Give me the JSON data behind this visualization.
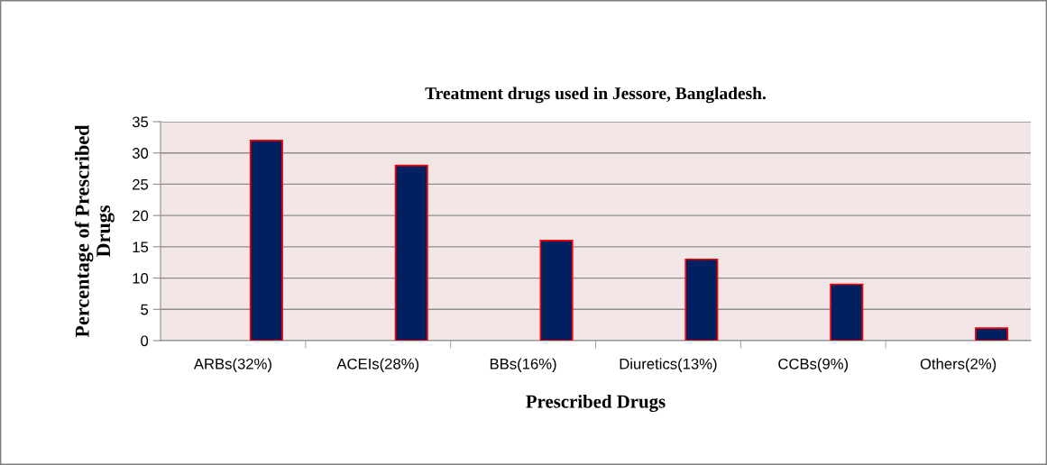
{
  "chart_data": {
    "type": "bar",
    "title": "Treatment drugs used in Jessore, Bangladesh.",
    "xlabel": "Prescribed Drugs",
    "ylabel": "Percentage of Prescribed\nDrugs",
    "categories": [
      "ARBs(32%)",
      "ACEIs(28%)",
      "BBs(16%)",
      "Diuretics(13%)",
      "CCBs(9%)",
      "Others(2%)"
    ],
    "values": [
      32,
      28,
      16,
      13,
      9,
      2
    ],
    "color": "#002060",
    "ylim": [
      0,
      35
    ],
    "yticks": [
      0,
      5,
      10,
      15,
      20,
      25,
      30,
      35
    ],
    "grid": "y"
  }
}
